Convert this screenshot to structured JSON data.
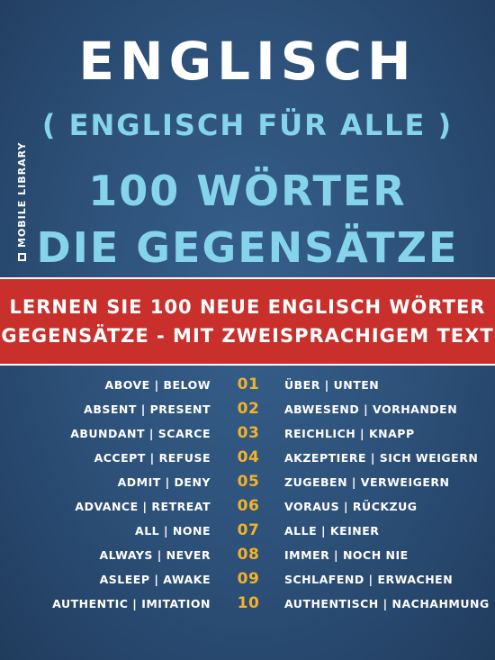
{
  "title": "ENGLISCH",
  "subtitle": "( ENGLISCH FÜR ALLE )",
  "words_line": "100 WÖRTER",
  "topic_line": "DIE GEGENSÄTZE",
  "publisher": "MOBILE LIBRARY",
  "banner": {
    "line1": "LERNEN SIE 100 NEUE ENGLISCH WÖRTER",
    "line2": "GEGENSÄTZE - MIT ZWEISPRACHIGEM TEXT"
  },
  "colors": {
    "background": "#2d5078",
    "title": "#ffffff",
    "accent": "#86d4ec",
    "banner": "#c9302c",
    "number": "#f2b22a"
  },
  "word_pairs": [
    {
      "en": "ABOVE | BELOW",
      "num": "01",
      "de": "ÜBER | UNTEN"
    },
    {
      "en": "ABSENT | PRESENT",
      "num": "02",
      "de": "ABWESEND | VORHANDEN"
    },
    {
      "en": "ABUNDANT | SCARCE",
      "num": "03",
      "de": "REICHLICH | KNAPP"
    },
    {
      "en": "ACCEPT | REFUSE",
      "num": "04",
      "de": "AKZEPTIERE | SICH WEIGERN"
    },
    {
      "en": "ADMIT | DENY",
      "num": "05",
      "de": "ZUGEBEN | VERWEIGERN"
    },
    {
      "en": "ADVANCE | RETREAT",
      "num": "06",
      "de": "VORAUS | RÜCKZUG"
    },
    {
      "en": "ALL | NONE",
      "num": "07",
      "de": "ALLE | KEINER"
    },
    {
      "en": "ALWAYS | NEVER",
      "num": "08",
      "de": "IMMER | NOCH NIE"
    },
    {
      "en": "ASLEEP | AWAKE",
      "num": "09",
      "de": "SCHLAFEND | ERWACHEN"
    },
    {
      "en": "AUTHENTIC | IMITATION",
      "num": "10",
      "de": "AUTHENTISCH | NACHAHMUNG"
    }
  ]
}
